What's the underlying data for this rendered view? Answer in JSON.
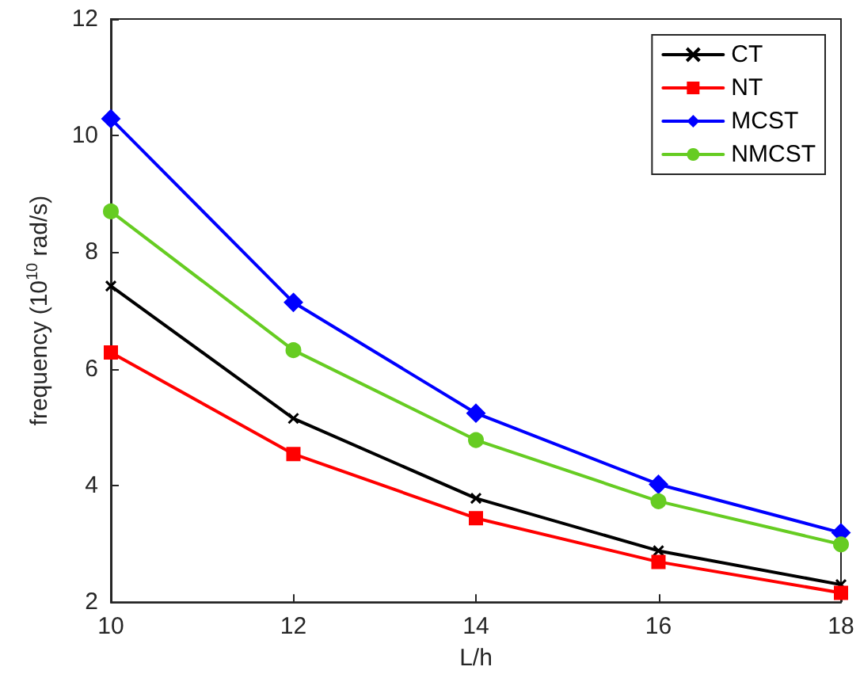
{
  "chart_data": {
    "type": "line",
    "xlabel": "L/h",
    "ylabel": "frequency (10$^{10}$ rad/s)",
    "x": [
      10,
      12,
      14,
      16,
      18
    ],
    "xlim": [
      10,
      18
    ],
    "xticks": [
      10,
      12,
      14,
      16,
      18
    ],
    "ylim": [
      2,
      12
    ],
    "yticks": [
      2,
      4,
      6,
      8,
      10,
      12
    ],
    "grid": false,
    "legend": "top right",
    "series": [
      {
        "name": "CT",
        "color": "#000000",
        "marker": "cross",
        "values": [
          7.42,
          5.15,
          3.78,
          2.88,
          2.3
        ]
      },
      {
        "name": "NT",
        "color": "#ff0000",
        "marker": "square",
        "values": [
          6.28,
          4.54,
          3.44,
          2.69,
          2.16
        ]
      },
      {
        "name": "MCST",
        "color": "#0000ff",
        "marker": "diamond",
        "values": [
          10.29,
          7.14,
          5.24,
          4.02,
          3.19
        ]
      },
      {
        "name": "NMCST",
        "color": "#66cc22",
        "marker": "circle",
        "values": [
          8.7,
          6.32,
          4.78,
          3.73,
          2.99
        ]
      }
    ]
  }
}
